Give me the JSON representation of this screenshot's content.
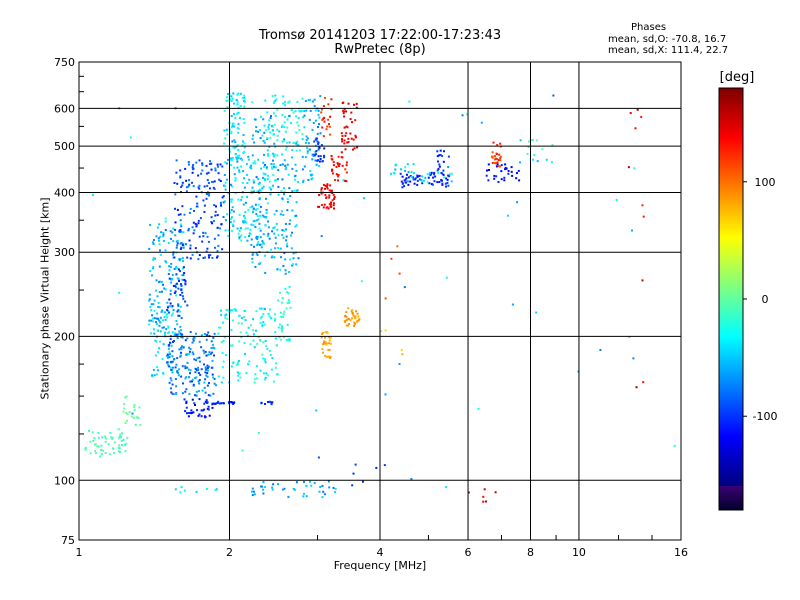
{
  "chart_data": {
    "type": "scatter",
    "title": "Tromsø 20141203 17:22:00-17:23:43",
    "subtitle": "RwPretec (8p)",
    "xlabel": "Frequency [MHz]",
    "ylabel": "Stationary phase Virtual Height [km]",
    "x_scale": "log",
    "y_scale": "log",
    "xlim": [
      1,
      16
    ],
    "ylim": [
      75,
      750
    ],
    "x_ticks": [
      "1",
      "2",
      "4",
      "6",
      "8",
      "10",
      "16"
    ],
    "y_ticks": [
      "75",
      "100",
      "200",
      "300",
      "400",
      "500",
      "600",
      "750"
    ],
    "grid": true,
    "stats": {
      "heading": "Phases",
      "o_line": "mean, sd,O: -70.8, 16.7",
      "x_line": "mean, sd,X: 111.4, 22.7"
    },
    "colorbar": {
      "unit": "[deg]",
      "range": [
        -180,
        180
      ],
      "ticks": [
        "100",
        "0",
        "-100"
      ],
      "tick_values": [
        100,
        0,
        -100
      ]
    },
    "clusters": [
      {
        "x": [
          1.03,
          1.25
        ],
        "y": [
          112,
          128
        ],
        "phase": -8,
        "n": 55,
        "jitter": 10
      },
      {
        "x": [
          1.2,
          1.33
        ],
        "y": [
          130,
          150
        ],
        "phase": 0,
        "n": 20,
        "jitter": 10
      },
      {
        "x": [
          1.38,
          1.62
        ],
        "y": [
          200,
          350
        ],
        "phase": -55,
        "n": 140,
        "jitter": 25
      },
      {
        "x": [
          1.4,
          1.55
        ],
        "y": [
          165,
          245
        ],
        "phase": -40,
        "n": 60,
        "jitter": 20
      },
      {
        "x": [
          1.5,
          1.88
        ],
        "y": [
          150,
          205
        ],
        "phase": -75,
        "n": 180,
        "jitter": 25
      },
      {
        "x": [
          1.55,
          1.95
        ],
        "y": [
          290,
          470
        ],
        "phase": -90,
        "n": 170,
        "jitter": 25
      },
      {
        "x": [
          1.5,
          1.65
        ],
        "y": [
          220,
          280
        ],
        "phase": -95,
        "n": 40,
        "jitter": 15
      },
      {
        "x": [
          1.62,
          1.85
        ],
        "y": [
          135,
          148
        ],
        "phase": -110,
        "n": 35,
        "jitter": 15
      },
      {
        "x": [
          1.9,
          2.5
        ],
        "y": [
          160,
          230
        ],
        "phase": -30,
        "n": 130,
        "jitter": 20
      },
      {
        "x": [
          1.78,
          2.05
        ],
        "y": [
          144,
          146
        ],
        "phase": -105,
        "n": 25,
        "jitter": 10
      },
      {
        "x": [
          2.3,
          2.45
        ],
        "y": [
          144,
          146
        ],
        "phase": -100,
        "n": 10,
        "jitter": 10
      },
      {
        "x": [
          1.95,
          2.15
        ],
        "y": [
          470,
          650
        ],
        "phase": -35,
        "n": 80,
        "jitter": 20
      },
      {
        "x": [
          1.95,
          2.4
        ],
        "y": [
          310,
          480
        ],
        "phase": -45,
        "n": 150,
        "jitter": 25
      },
      {
        "x": [
          2.2,
          2.75
        ],
        "y": [
          270,
          580
        ],
        "phase": -55,
        "n": 200,
        "jitter": 25
      },
      {
        "x": [
          2.35,
          2.5
        ],
        "y": [
          420,
          640
        ],
        "phase": -30,
        "n": 45,
        "jitter": 15
      },
      {
        "x": [
          2.5,
          2.65
        ],
        "y": [
          195,
          260
        ],
        "phase": -20,
        "n": 35,
        "jitter": 15
      },
      {
        "x": [
          2.55,
          2.8
        ],
        "y": [
          480,
          640
        ],
        "phase": -25,
        "n": 40,
        "jitter": 15
      },
      {
        "x": [
          2.8,
          3.05
        ],
        "y": [
          420,
          640
        ],
        "phase": -55,
        "n": 60,
        "jitter": 20
      },
      {
        "x": [
          2.95,
          3.1
        ],
        "y": [
          460,
          520
        ],
        "phase": -100,
        "n": 25,
        "jitter": 15
      },
      {
        "x": [
          3.0,
          3.25
        ],
        "y": [
          370,
          420
        ],
        "phase": 140,
        "n": 45,
        "jitter": 10
      },
      {
        "x": [
          3.2,
          3.45
        ],
        "y": [
          420,
          480
        ],
        "phase": 135,
        "n": 30,
        "jitter": 10
      },
      {
        "x": [
          3.35,
          3.6
        ],
        "y": [
          480,
          620
        ],
        "phase": 145,
        "n": 40,
        "jitter": 10
      },
      {
        "x": [
          3.05,
          3.2
        ],
        "y": [
          180,
          205
        ],
        "phase": 80,
        "n": 30,
        "jitter": 10
      },
      {
        "x": [
          3.4,
          3.65
        ],
        "y": [
          210,
          230
        ],
        "phase": 85,
        "n": 35,
        "jitter": 10
      },
      {
        "x": [
          3.05,
          3.2
        ],
        "y": [
          520,
          640
        ],
        "phase": 125,
        "n": 20,
        "jitter": 15
      },
      {
        "x": [
          2.2,
          3.3
        ],
        "y": [
          92,
          100
        ],
        "phase": -60,
        "n": 40,
        "jitter": 20
      },
      {
        "x": [
          1.55,
          1.9
        ],
        "y": [
          94,
          97
        ],
        "phase": -40,
        "n": 8,
        "jitter": 10
      },
      {
        "x": [
          4.4,
          5.5
        ],
        "y": [
          410,
          440
        ],
        "phase": -105,
        "n": 60,
        "jitter": 15
      },
      {
        "x": [
          4.2,
          5.6
        ],
        "y": [
          420,
          460
        ],
        "phase": -40,
        "n": 30,
        "jitter": 25
      },
      {
        "x": [
          5.2,
          5.5
        ],
        "y": [
          440,
          490
        ],
        "phase": -100,
        "n": 15,
        "jitter": 15
      },
      {
        "x": [
          6.5,
          7.6
        ],
        "y": [
          420,
          460
        ],
        "phase": -115,
        "n": 30,
        "jitter": 15
      },
      {
        "x": [
          6.7,
          7.0
        ],
        "y": [
          450,
          510
        ],
        "phase": 120,
        "n": 25,
        "jitter": 15
      },
      {
        "x": [
          7.5,
          8.9
        ],
        "y": [
          450,
          520
        ],
        "phase": -30,
        "n": 15,
        "jitter": 30
      },
      {
        "x": [
          1.0,
          16.0
        ],
        "y": [
          90,
          650
        ],
        "phase": -50,
        "n": 45,
        "jitter": 40
      },
      {
        "x": [
          6.0,
          7.0
        ],
        "y": [
          90,
          100
        ],
        "phase": 150,
        "n": 6,
        "jitter": 10
      },
      {
        "x": [
          3.5,
          4.2
        ],
        "y": [
          95,
          110
        ],
        "phase": -100,
        "n": 6,
        "jitter": 10
      },
      {
        "x": [
          12.5,
          13.5
        ],
        "y": [
          150,
          650
        ],
        "phase": 150,
        "n": 10,
        "jitter": 25
      },
      {
        "x": [
          4.0,
          6.0
        ],
        "y": [
          180,
          320
        ],
        "phase": 90,
        "n": 8,
        "jitter": 30
      }
    ]
  }
}
